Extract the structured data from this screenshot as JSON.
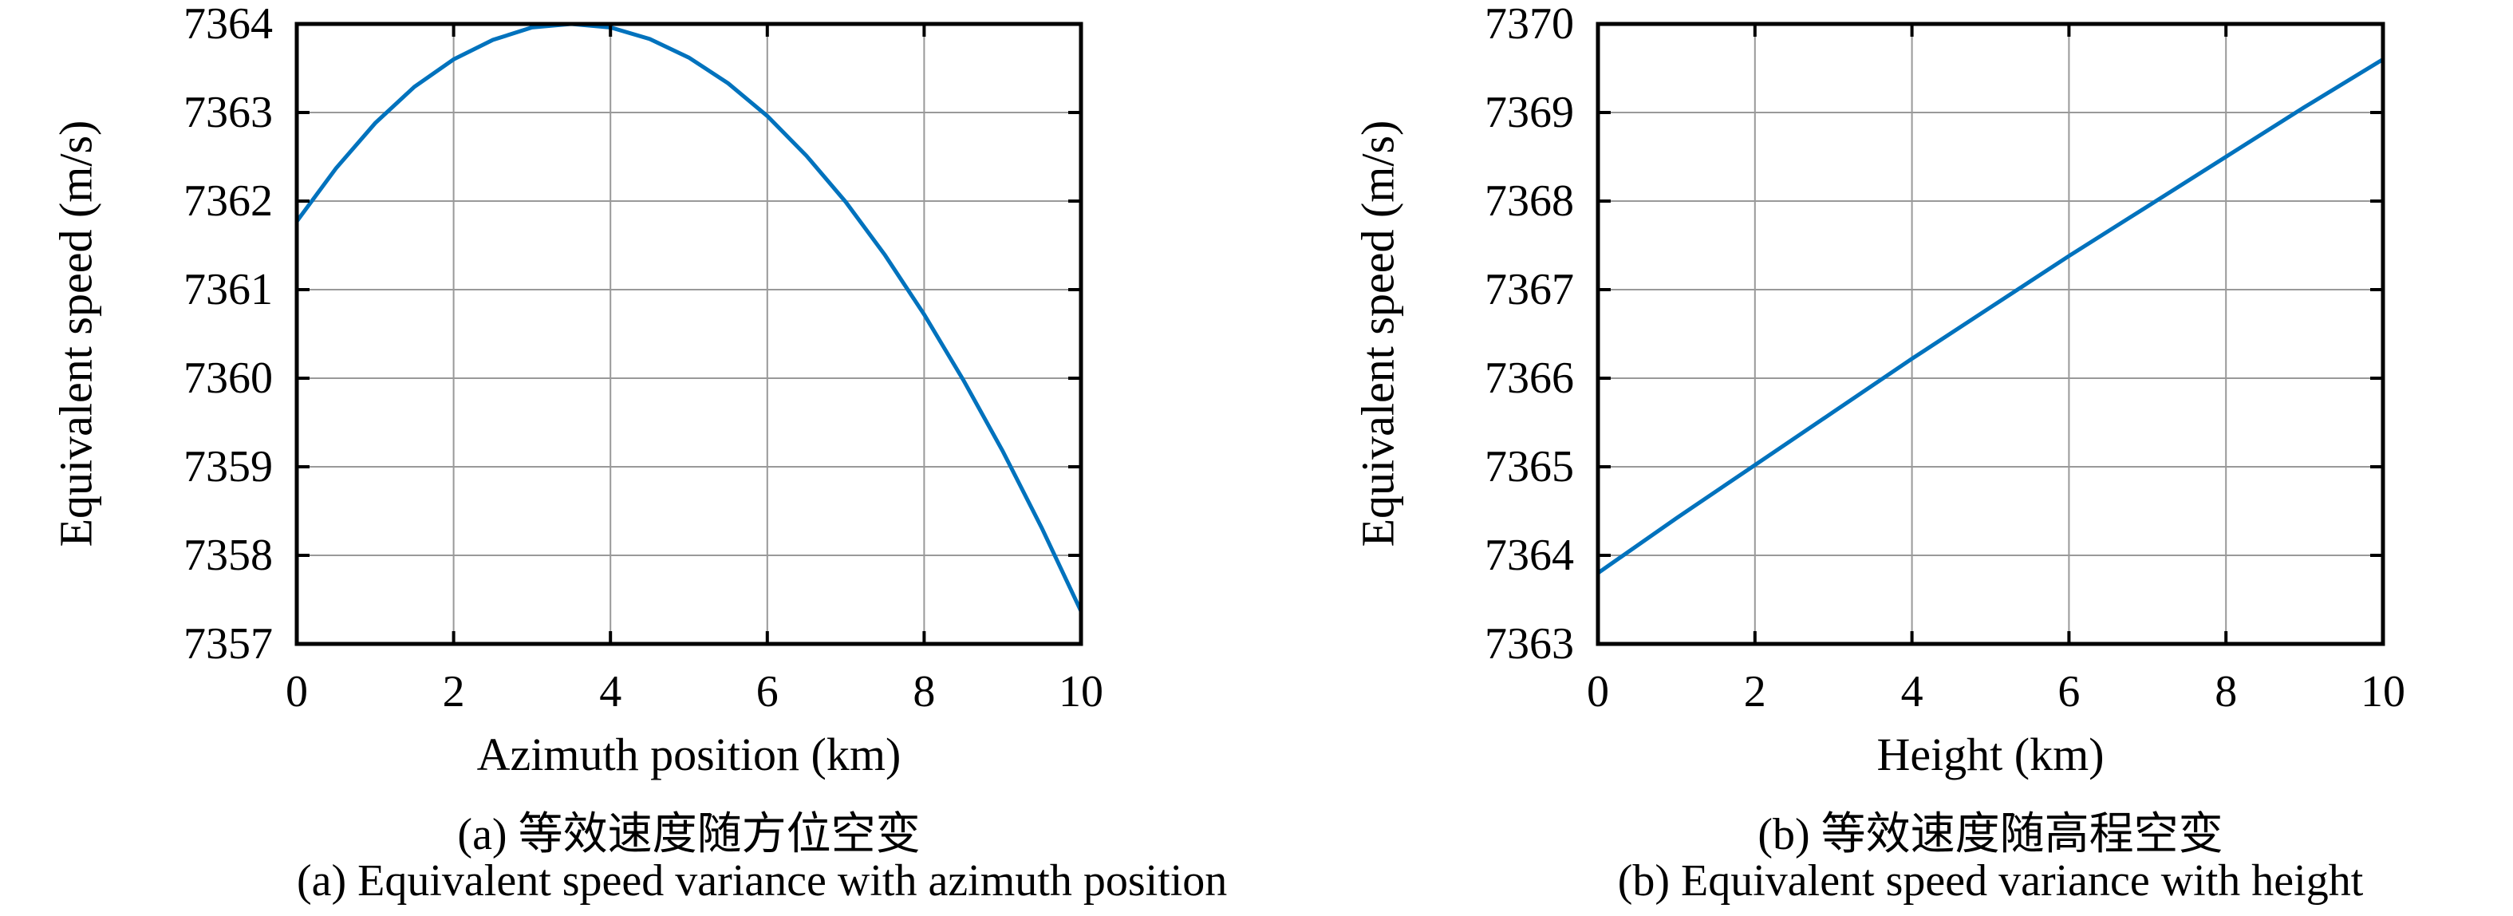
{
  "colors": {
    "line": "#0072BD",
    "grid": "#999999",
    "axis": "#000000",
    "text": "#000000",
    "background": "#ffffff"
  },
  "chart_data": [
    {
      "type": "line",
      "title": "",
      "xlabel": "Azimuth position (km)",
      "ylabel": "Equivalent speed (m/s)",
      "caption_zh": "(a) 等效速度随方位空变",
      "caption_en": "(a) Equivalent speed variance with azimuth position",
      "xlim": [
        0,
        10
      ],
      "ylim": [
        7357,
        7364
      ],
      "xticks": [
        0,
        2,
        4,
        6,
        8,
        10
      ],
      "yticks": [
        7357,
        7358,
        7359,
        7360,
        7361,
        7362,
        7363,
        7364
      ],
      "grid": true,
      "legend": "none",
      "x": [
        0,
        0.5,
        1,
        1.5,
        2,
        2.5,
        3,
        3.5,
        4,
        4.5,
        5,
        5.5,
        6,
        6.5,
        7,
        7.5,
        8,
        8.5,
        9,
        9.5,
        10
      ],
      "y": [
        7361.77,
        7362.37,
        7362.88,
        7363.29,
        7363.6,
        7363.82,
        7363.96,
        7364.0,
        7363.96,
        7363.83,
        7363.62,
        7363.33,
        7362.96,
        7362.51,
        7361.99,
        7361.39,
        7360.72,
        7359.98,
        7359.18,
        7358.31,
        7357.37
      ]
    },
    {
      "type": "line",
      "title": "",
      "xlabel": "Height (km)",
      "ylabel": "Equivalent speed (m/s)",
      "caption_zh": "(b) 等效速度随高程空变",
      "caption_en": "(b) Equivalent speed variance with height",
      "xlim": [
        0,
        10
      ],
      "ylim": [
        7363,
        7370
      ],
      "xticks": [
        0,
        2,
        4,
        6,
        8,
        10
      ],
      "yticks": [
        7363,
        7364,
        7365,
        7366,
        7367,
        7368,
        7369,
        7370
      ],
      "grid": true,
      "legend": "none",
      "x": [
        0,
        1,
        2,
        3,
        4,
        5,
        6,
        7,
        8,
        9,
        10
      ],
      "y": [
        7363.8,
        7364.42,
        7365.02,
        7365.62,
        7366.22,
        7366.8,
        7367.38,
        7367.94,
        7368.5,
        7369.06,
        7369.6
      ]
    }
  ]
}
